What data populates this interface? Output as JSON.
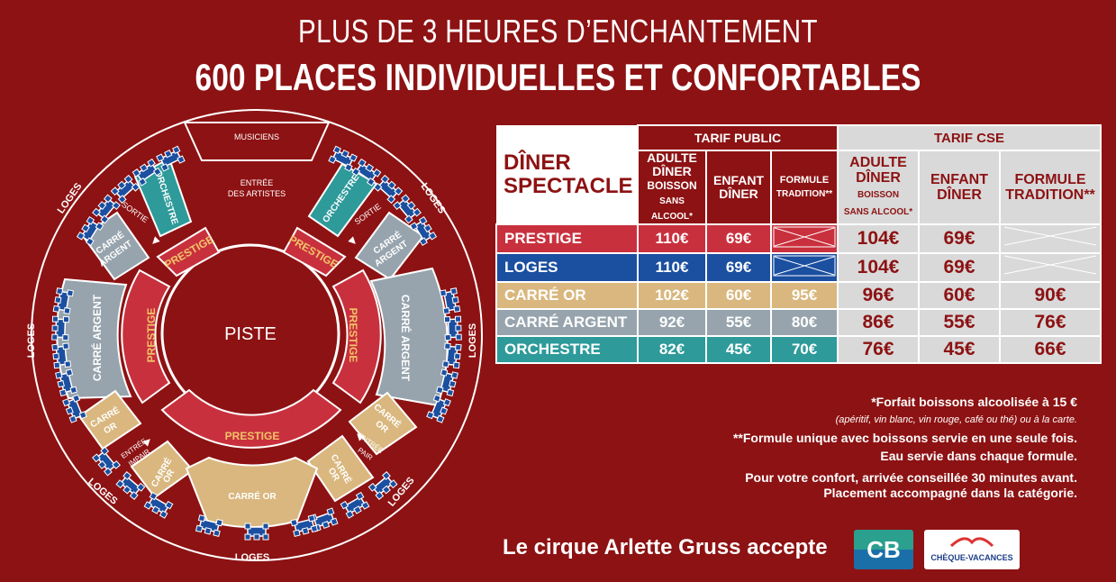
{
  "header": {
    "title_line1": "PLUS DE 3 HEURES D’ENCHANTEMENT",
    "title_line2": "600 PLACES INDIVIDUELLES ET CONFORTABLES"
  },
  "plan": {
    "musiciens": "MUSICIENS",
    "entree_artistes_1": "ENTRÉE",
    "entree_artistes_2": "DES ARTISTES",
    "piste": "PISTE",
    "sortie": "SORTIE",
    "loges": "LOGES",
    "orchestre": "ORCHESTRE",
    "prestige": "PRESTIGE",
    "carre_argent": "CARRÉ ARGENT",
    "carre_argent_1": "CARRÉ",
    "carre_argent_2": "ARGENT",
    "carre_or": "CARRÉ OR",
    "carre_or_1": "CARRÉ",
    "carre_or_2": "OR",
    "entree_impair_1": "ENTRÉE",
    "entree_impair_2": "IMPAIR",
    "entree_pair_1": "ENTRÉE",
    "entree_pair_2": "PAIR"
  },
  "table": {
    "title_1": "DÎNER",
    "title_2": "SPECTACLE",
    "tarif_public": "TARIF PUBLIC",
    "tarif_cse": "TARIF CSE",
    "col_adulte_1": "ADULTE",
    "col_adulte_2": "DÎNER",
    "col_adulte_3": "BOISSON",
    "col_adulte_4": "SANS ALCOOL*",
    "col_enfant_1": "ENFANT",
    "col_enfant_2": "DÎNER",
    "col_formule_1": "FORMULE",
    "col_formule_2": "TRADITION**",
    "rows": [
      {
        "label": "PRESTIGE",
        "color": "#c9303d",
        "pub_adulte": "110€",
        "pub_enfant": "69€",
        "pub_formule": "",
        "cse_adulte": "104€",
        "cse_enfant": "69€",
        "cse_formule": ""
      },
      {
        "label": "LOGES",
        "color": "#1b4fa0",
        "pub_adulte": "110€",
        "pub_enfant": "69€",
        "pub_formule": "",
        "cse_adulte": "104€",
        "cse_enfant": "69€",
        "cse_formule": ""
      },
      {
        "label": "CARRÉ OR",
        "color": "#d9b77e",
        "pub_adulte": "102€",
        "pub_enfant": "60€",
        "pub_formule": "95€",
        "cse_adulte": "96€",
        "cse_enfant": "60€",
        "cse_formule": "90€"
      },
      {
        "label": "CARRÉ ARGENT",
        "color": "#97a4ad",
        "pub_adulte": "92€",
        "pub_enfant": "55€",
        "pub_formule": "80€",
        "cse_adulte": "86€",
        "cse_enfant": "55€",
        "cse_formule": "76€"
      },
      {
        "label": "ORCHESTRE",
        "color": "#2e9a9a",
        "pub_adulte": "82€",
        "pub_enfant": "45€",
        "pub_formule": "70€",
        "cse_adulte": "76€",
        "cse_enfant": "45€",
        "cse_formule": "66€"
      }
    ]
  },
  "notes": {
    "n1": "*Forfait boissons alcoolisée à 15 €",
    "n2": "(apéritif, vin blanc, vin rouge, café ou thé) ou à la carte.",
    "n3": "**Formule unique avec boissons servie en une seule fois.",
    "n4": "Eau servie dans chaque formule.",
    "n5": "Pour votre confort, arrivée conseillée 30 minutes avant.",
    "n6": "Placement accompagné dans la catégorie."
  },
  "footer": {
    "accept": "Le cirque Arlette Gruss accepte",
    "cb": "CB",
    "cheque": "CHÈQUE-VACANCES"
  },
  "colors": {
    "background": "#8d1213",
    "prestige": "#c9303d",
    "loges": "#1b4fa0",
    "carre_or": "#d9b77e",
    "carre_argent": "#97a4ad",
    "orchestre": "#2e9a9a",
    "cse_bg": "#d9d9d9"
  }
}
